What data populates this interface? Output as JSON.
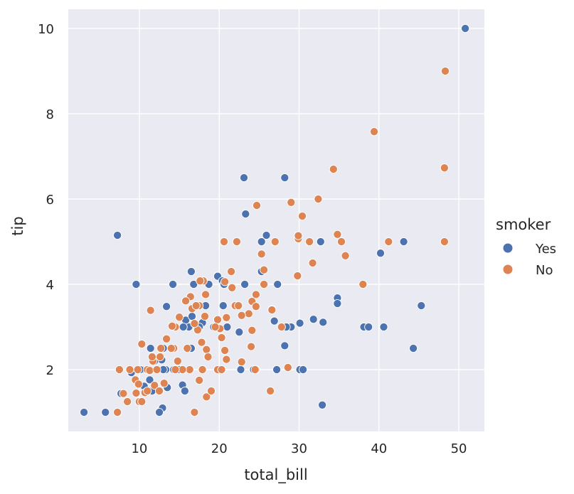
{
  "chart_data": {
    "type": "scatter",
    "xlabel": "total_bill",
    "ylabel": "tip",
    "xlim": [
      1.1,
      53.2
    ],
    "ylim": [
      0.55,
      10.45
    ],
    "xticks": [
      10,
      20,
      30,
      40,
      50
    ],
    "yticks": [
      2,
      4,
      6,
      8,
      10
    ],
    "grid": true,
    "legend": {
      "title": "smoker",
      "position": "right"
    },
    "colors": {
      "Yes": "#4c72b0",
      "No": "#dd8452",
      "background": "#eaeaf2",
      "grid": "#ffffff"
    },
    "series": [
      {
        "name": "Yes",
        "points": [
          [
            50.8,
            10.0
          ],
          [
            7.25,
            5.15
          ],
          [
            9.6,
            4.0
          ],
          [
            23.1,
            6.5
          ],
          [
            23.3,
            5.65
          ],
          [
            28.2,
            6.5
          ],
          [
            25.9,
            5.15
          ],
          [
            25.3,
            5.0
          ],
          [
            32.7,
            5.0
          ],
          [
            40.2,
            4.73
          ],
          [
            43.1,
            5.0
          ],
          [
            34.8,
            3.68
          ],
          [
            34.8,
            3.55
          ],
          [
            45.3,
            3.5
          ],
          [
            38.1,
            3.0
          ],
          [
            38.7,
            3.0
          ],
          [
            40.6,
            3.0
          ],
          [
            44.3,
            2.5
          ],
          [
            28.2,
            2.56
          ],
          [
            29.0,
            3.0
          ],
          [
            30.1,
            3.09
          ],
          [
            31.8,
            3.18
          ],
          [
            33.0,
            3.11
          ],
          [
            32.9,
            1.17
          ],
          [
            30.1,
            2.0
          ],
          [
            30.5,
            2.0
          ],
          [
            27.2,
            2.0
          ],
          [
            24.3,
            2.0
          ],
          [
            22.7,
            2.0
          ],
          [
            26.6,
            3.41
          ],
          [
            26.9,
            3.14
          ],
          [
            28.4,
            3.0
          ],
          [
            25.3,
            4.3
          ],
          [
            23.2,
            4.0
          ],
          [
            27.3,
            4.0
          ],
          [
            19.8,
            4.19
          ],
          [
            20.4,
            4.08
          ],
          [
            20.6,
            4.0
          ],
          [
            16.5,
            4.3
          ],
          [
            16.8,
            4.0
          ],
          [
            18.7,
            4.0
          ],
          [
            14.2,
            4.0
          ],
          [
            17.9,
            3.1
          ],
          [
            18.3,
            3.5
          ],
          [
            21.0,
            3.0
          ],
          [
            22.5,
            2.88
          ],
          [
            16.2,
            3.0
          ],
          [
            15.8,
            3.16
          ],
          [
            15.5,
            3.0
          ],
          [
            16.6,
            3.25
          ],
          [
            17.5,
            3.0
          ],
          [
            19.3,
            3.0
          ],
          [
            20.5,
            3.5
          ],
          [
            13.4,
            3.48
          ],
          [
            13.0,
            2.5
          ],
          [
            12.8,
            2.23
          ],
          [
            11.4,
            2.5
          ],
          [
            10.3,
            2.0
          ],
          [
            11.9,
            2.2
          ],
          [
            13.3,
            2.0
          ],
          [
            14.3,
            2.0
          ],
          [
            15.0,
            2.0
          ],
          [
            15.4,
            1.64
          ],
          [
            15.7,
            1.5
          ],
          [
            16.5,
            2.5
          ],
          [
            17.9,
            2.0
          ],
          [
            9.0,
            1.93
          ],
          [
            10.1,
            2.0
          ],
          [
            10.6,
            1.61
          ],
          [
            11.6,
            1.5
          ],
          [
            12.9,
            1.1
          ],
          [
            12.5,
            1.0
          ],
          [
            13.5,
            1.58
          ],
          [
            11.3,
            1.76
          ],
          [
            7.7,
            1.44
          ],
          [
            3.07,
            1.0
          ],
          [
            5.75,
            1.0
          ],
          [
            13.0,
            2.0
          ]
        ]
      },
      {
        "name": "No",
        "points": [
          [
            48.3,
            9.0
          ],
          [
            39.4,
            7.58
          ],
          [
            48.2,
            6.73
          ],
          [
            34.3,
            6.7
          ],
          [
            32.4,
            6.0
          ],
          [
            29.0,
            5.92
          ],
          [
            24.7,
            5.85
          ],
          [
            30.4,
            5.6
          ],
          [
            29.9,
            5.07
          ],
          [
            29.9,
            5.14
          ],
          [
            31.3,
            5.0
          ],
          [
            34.8,
            5.17
          ],
          [
            35.3,
            5.0
          ],
          [
            35.8,
            4.67
          ],
          [
            41.2,
            5.0
          ],
          [
            48.2,
            5.0
          ],
          [
            27.0,
            5.0
          ],
          [
            22.2,
            5.0
          ],
          [
            20.6,
            5.0
          ],
          [
            25.3,
            4.71
          ],
          [
            25.6,
            4.34
          ],
          [
            21.5,
            4.3
          ],
          [
            31.7,
            4.5
          ],
          [
            29.8,
            4.2
          ],
          [
            38.0,
            4.0
          ],
          [
            25.6,
            4.0
          ],
          [
            24.6,
            3.76
          ],
          [
            24.1,
            3.6
          ],
          [
            24.6,
            3.48
          ],
          [
            26.6,
            3.4
          ],
          [
            23.7,
            3.31
          ],
          [
            22.8,
            3.27
          ],
          [
            22.0,
            3.5
          ],
          [
            21.6,
            3.92
          ],
          [
            20.7,
            4.06
          ],
          [
            18.0,
            4.08
          ],
          [
            18.3,
            3.76
          ],
          [
            17.5,
            3.5
          ],
          [
            18.2,
            3.25
          ],
          [
            17.3,
            2.93
          ],
          [
            17.8,
            2.64
          ],
          [
            18.4,
            2.47
          ],
          [
            18.6,
            2.3
          ],
          [
            16.4,
            3.71
          ],
          [
            15.8,
            3.61
          ],
          [
            15.0,
            3.23
          ],
          [
            16.0,
            2.5
          ],
          [
            14.5,
            3.0
          ],
          [
            14.1,
            3.02
          ],
          [
            14.3,
            2.5
          ],
          [
            14.0,
            2.5
          ],
          [
            14.8,
            2.2
          ],
          [
            13.4,
            2.72
          ],
          [
            12.7,
            2.5
          ],
          [
            12.6,
            2.3
          ],
          [
            11.7,
            2.2
          ],
          [
            11.6,
            2.3
          ],
          [
            11.0,
            2.0
          ],
          [
            10.3,
            2.6
          ],
          [
            9.8,
            2.0
          ],
          [
            9.5,
            1.76
          ],
          [
            9.6,
            1.45
          ],
          [
            9.9,
            1.66
          ],
          [
            10.0,
            1.25
          ],
          [
            10.3,
            1.25
          ],
          [
            10.7,
            1.46
          ],
          [
            11.0,
            1.5
          ],
          [
            11.3,
            1.98
          ],
          [
            11.9,
            1.63
          ],
          [
            12.5,
            1.5
          ],
          [
            13.1,
            1.68
          ],
          [
            8.5,
            1.25
          ],
          [
            8.8,
            2.0
          ],
          [
            7.5,
            2.0
          ],
          [
            7.25,
            1.0
          ],
          [
            8.0,
            1.44
          ],
          [
            18.4,
            1.36
          ],
          [
            19.0,
            1.5
          ],
          [
            17.5,
            1.75
          ],
          [
            17.9,
            2.0
          ],
          [
            19.8,
            2.0
          ],
          [
            20.3,
            2.0
          ],
          [
            20.7,
            2.45
          ],
          [
            20.9,
            2.24
          ],
          [
            22.8,
            2.18
          ],
          [
            24.6,
            2.0
          ],
          [
            24.5,
            2.0
          ],
          [
            26.4,
            1.5
          ],
          [
            28.6,
            2.05
          ],
          [
            27.8,
            3.0
          ],
          [
            24.0,
            2.54
          ],
          [
            24.1,
            2.92
          ],
          [
            20.1,
            2.96
          ],
          [
            19.8,
            3.17
          ],
          [
            20.9,
            3.22
          ],
          [
            22.4,
            3.5
          ],
          [
            20.3,
            2.75
          ],
          [
            19.5,
            3.0
          ],
          [
            16.3,
            2.0
          ],
          [
            15.4,
            2.0
          ],
          [
            16.9,
            1.0
          ],
          [
            16.6,
            3.43
          ],
          [
            17.1,
            3.5
          ],
          [
            16.9,
            3.08
          ],
          [
            17.6,
            4.08
          ],
          [
            12.2,
            2.0
          ],
          [
            14.5,
            2.0
          ],
          [
            11.4,
            3.39
          ]
        ]
      }
    ]
  }
}
